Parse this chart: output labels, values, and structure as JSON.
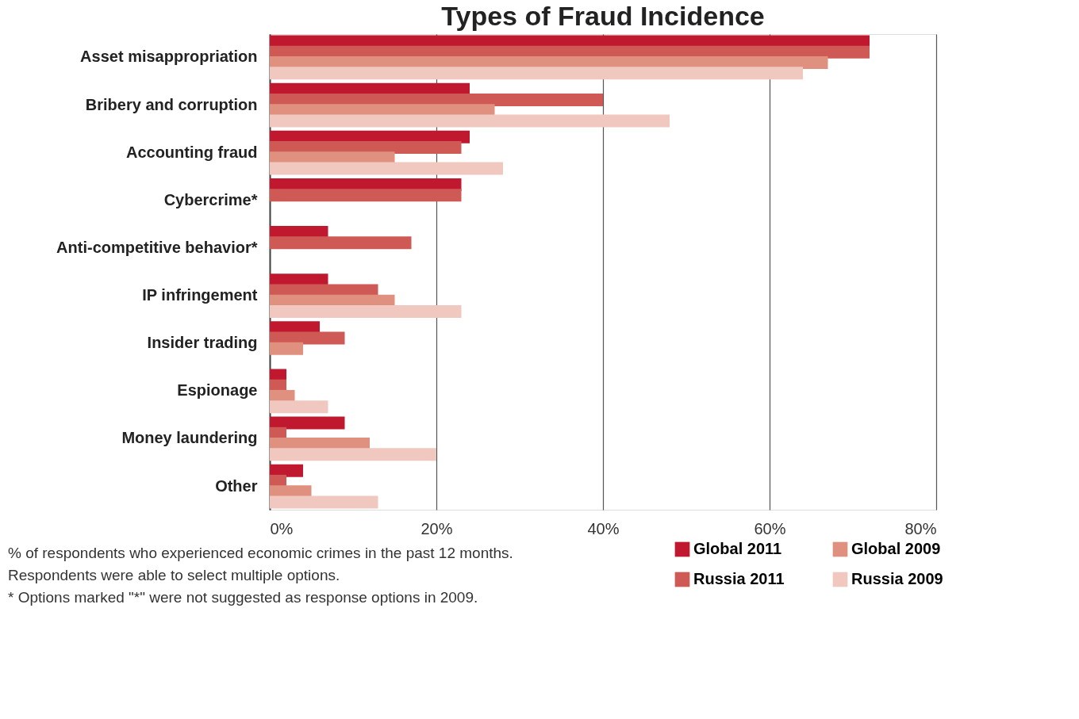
{
  "chart_data": {
    "type": "bar",
    "orientation": "horizontal",
    "title": "Types of Fraud Incidence",
    "categories": [
      "Asset misappropriation",
      "Bribery and corruption",
      "Accounting fraud",
      "Cybercrime*",
      "Anti-competitive behavior*",
      "IP infringement",
      "Insider trading",
      "Espionage",
      "Money laundering",
      "Other"
    ],
    "series": [
      {
        "name": "Global 2011",
        "color": "#c0182f",
        "values": [
          72,
          24,
          24,
          23,
          7,
          7,
          6,
          2,
          9,
          4
        ]
      },
      {
        "name": "Russia 2011",
        "color": "#cf5a55",
        "values": [
          72,
          40,
          23,
          23,
          17,
          13,
          9,
          2,
          2,
          2
        ]
      },
      {
        "name": "Global 2009",
        "color": "#e0907f",
        "values": [
          67,
          27,
          15,
          null,
          null,
          15,
          4,
          3,
          12,
          5
        ]
      },
      {
        "name": "Russia 2009",
        "color": "#f0c8c0",
        "values": [
          64,
          48,
          28,
          null,
          null,
          23,
          null,
          7,
          20,
          13
        ]
      }
    ],
    "xlim": [
      0,
      80
    ],
    "xticks": [
      {
        "value": 0,
        "label": "0%"
      },
      {
        "value": 20,
        "label": "20%"
      },
      {
        "value": 40,
        "label": "40%"
      },
      {
        "value": 60,
        "label": "60%"
      },
      {
        "value": 80,
        "label": "80%"
      }
    ],
    "grid": "x",
    "legend": "bottom right",
    "annotations": [
      "% of respondents who experienced economic crimes in the past 12 months.",
      "Respondents were able to select multiple options.",
      "* Options marked \"*\"  were not suggested as response options in 2009."
    ]
  }
}
